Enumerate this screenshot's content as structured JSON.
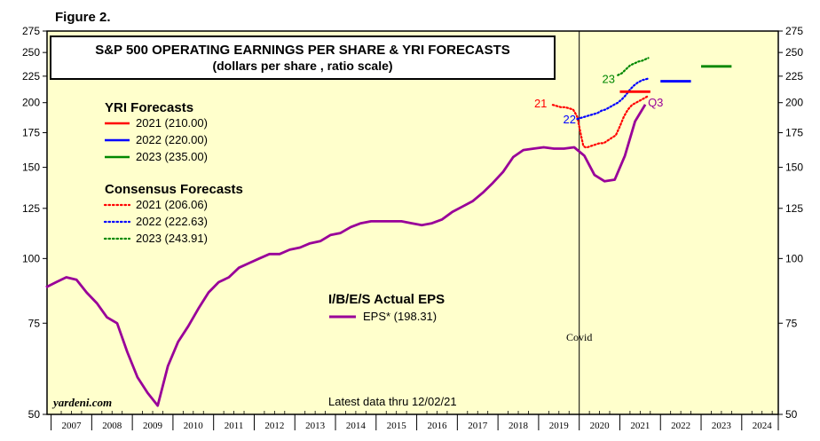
{
  "figure_label": "Figure 2.",
  "chart_data": {
    "type": "line",
    "title": "S&P 500 OPERATING EARNINGS PER SHARE & YRI FORECASTS",
    "subtitle": "(dollars per share , ratio scale)",
    "y_scale": "log",
    "ylim": [
      50,
      275
    ],
    "y_ticks": [
      50,
      75,
      100,
      125,
      150,
      175,
      200,
      225,
      250,
      275
    ],
    "x_range": [
      2006.9,
      2024.9
    ],
    "x_tick_labels": [
      "2007",
      "2008",
      "2009",
      "2010",
      "2011",
      "2012",
      "2013",
      "2014",
      "2015",
      "2016",
      "2017",
      "2018",
      "2019",
      "2020",
      "2021",
      "2022",
      "2023",
      "2024"
    ],
    "colors": {
      "background": "#ffffcc",
      "eps": "#990099",
      "y2021": "#ff0000",
      "y2022": "#0000ff",
      "y2023": "#008800"
    },
    "yri_forecasts": {
      "heading": "YRI Forecasts",
      "items": [
        {
          "label": "2021 (210.00)",
          "value": 210.0,
          "x": [
            2021.0,
            2021.75
          ],
          "color": "#ff0000"
        },
        {
          "label": "2022 (220.00)",
          "value": 220.0,
          "x": [
            2022.0,
            2022.75
          ],
          "color": "#0000ff"
        },
        {
          "label": "2023 (235.00)",
          "value": 235.0,
          "x": [
            2023.0,
            2023.75
          ],
          "color": "#008800"
        }
      ]
    },
    "consensus_forecasts": {
      "heading": "Consensus Forecasts",
      "items": [
        {
          "label": "2021 (206.06)",
          "tag": "21",
          "color": "#ff0000",
          "x": [
            2019.35,
            2019.45,
            2019.55,
            2019.65,
            2019.75,
            2019.85,
            2019.95,
            2020.05,
            2020.1,
            2020.15,
            2020.2,
            2020.3,
            2020.4,
            2020.5,
            2020.6,
            2020.7,
            2020.8,
            2020.9,
            2021.0,
            2021.1,
            2021.2,
            2021.3,
            2021.4,
            2021.5,
            2021.6,
            2021.7
          ],
          "y": [
            198,
            197,
            196,
            196,
            195,
            194,
            188,
            172,
            165,
            164,
            164,
            165,
            166,
            167,
            167,
            169,
            171,
            173,
            180,
            188,
            194,
            198,
            200,
            202,
            204,
            206.06
          ]
        },
        {
          "label": "2022 (222.63)",
          "tag": "22",
          "color": "#0000ff",
          "x": [
            2019.95,
            2020.05,
            2020.15,
            2020.25,
            2020.35,
            2020.45,
            2020.55,
            2020.65,
            2020.75,
            2020.85,
            2020.95,
            2021.05,
            2021.15,
            2021.25,
            2021.35,
            2021.45,
            2021.55,
            2021.7
          ],
          "y": [
            186,
            187,
            188,
            189,
            190,
            191,
            193,
            194,
            196,
            198,
            200,
            203,
            207,
            212,
            216,
            219,
            221,
            222.63
          ]
        },
        {
          "label": "2023 (243.91)",
          "tag": "23",
          "color": "#008800",
          "x": [
            2020.95,
            2021.05,
            2021.15,
            2021.25,
            2021.35,
            2021.45,
            2021.55,
            2021.7
          ],
          "y": [
            226,
            228,
            232,
            236,
            238,
            240,
            241,
            243.91
          ]
        }
      ]
    },
    "eps_series": {
      "heading": "I/B/E/S Actual EPS",
      "label": "EPS* (198.31)",
      "last_tag": "Q3",
      "x": [
        2006.875,
        2007.125,
        2007.375,
        2007.625,
        2007.875,
        2008.125,
        2008.375,
        2008.625,
        2008.875,
        2009.125,
        2009.375,
        2009.625,
        2009.875,
        2010.125,
        2010.375,
        2010.625,
        2010.875,
        2011.125,
        2011.375,
        2011.625,
        2011.875,
        2012.125,
        2012.375,
        2012.625,
        2012.875,
        2013.125,
        2013.375,
        2013.625,
        2013.875,
        2014.125,
        2014.375,
        2014.625,
        2014.875,
        2015.125,
        2015.375,
        2015.625,
        2015.875,
        2016.125,
        2016.375,
        2016.625,
        2016.875,
        2017.125,
        2017.375,
        2017.625,
        2017.875,
        2018.125,
        2018.375,
        2018.625,
        2018.875,
        2019.125,
        2019.375,
        2019.625,
        2019.875,
        2020.125,
        2020.375,
        2020.625,
        2020.875,
        2021.125,
        2021.375,
        2021.625
      ],
      "y": [
        88,
        90,
        92,
        91,
        86,
        82,
        77,
        75,
        66,
        59,
        55,
        52,
        62,
        69,
        74,
        80,
        86,
        90,
        92,
        96,
        98,
        100,
        102,
        102,
        104,
        105,
        107,
        108,
        111,
        112,
        115,
        117,
        118,
        118,
        118,
        118,
        117,
        116,
        117,
        119,
        123,
        126,
        129,
        134,
        140,
        147,
        157,
        162,
        163,
        164,
        163,
        163,
        164,
        158,
        145,
        141,
        142,
        158,
        184,
        198.31
      ]
    },
    "covid_label": "Covid",
    "covid_x": 2020.0,
    "source": "yardeni.com",
    "note": "Latest data thru 12/02/21"
  }
}
